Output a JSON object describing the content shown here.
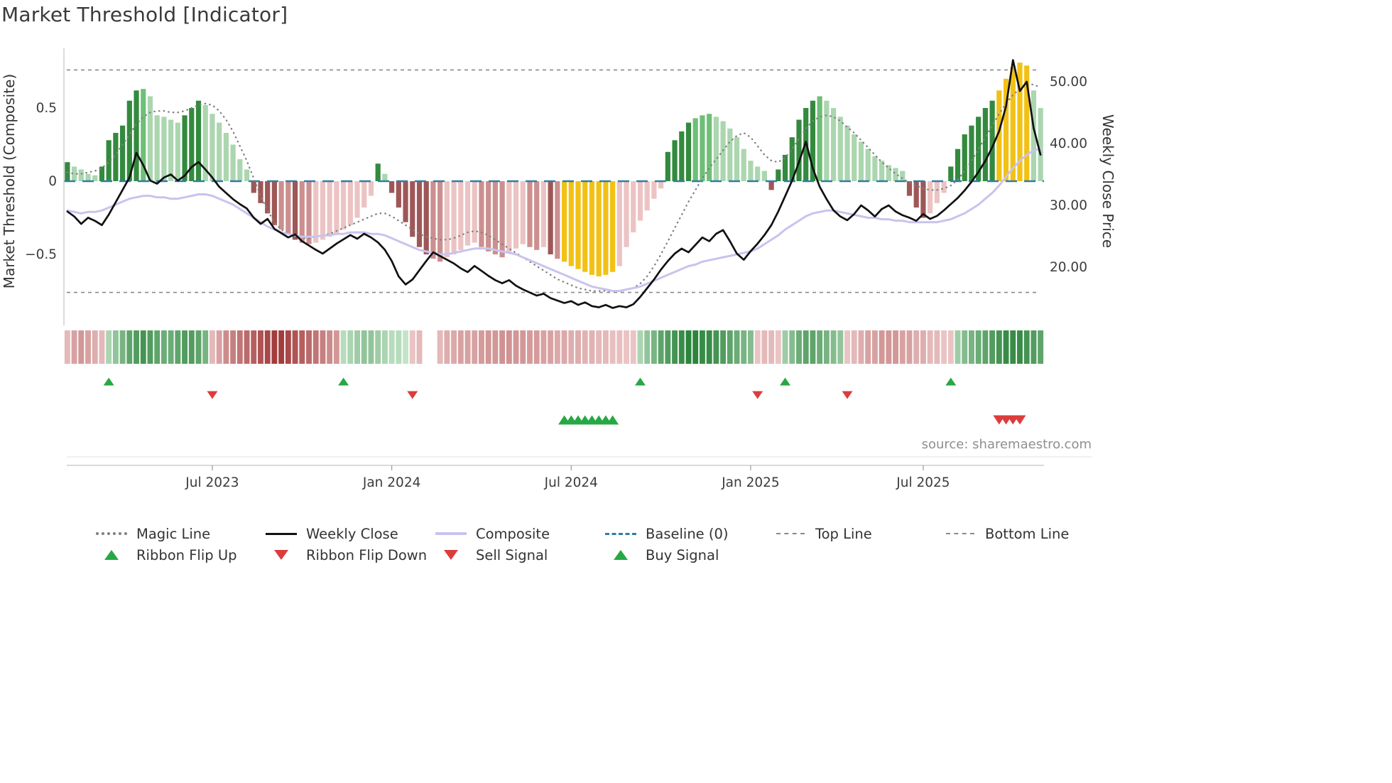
{
  "title": "Market Threshold [Indicator]",
  "source": "source: sharemaestro.com",
  "axes": {
    "left_label": "Market Threshold (Composite)",
    "right_label": "Weekly Close Price",
    "left_ticks": [
      {
        "label": "0.5",
        "value": 0.5
      },
      {
        "label": "0",
        "value": 0
      },
      {
        "label": "−0.5",
        "value": -0.5
      }
    ],
    "right_ticks": [
      {
        "label": "50.00",
        "value": 50
      },
      {
        "label": "40.00",
        "value": 40
      },
      {
        "label": "30.00",
        "value": 30
      },
      {
        "label": "20.00",
        "value": 20
      }
    ],
    "x_ticks": [
      {
        "label": "Jul 2023",
        "week": 21
      },
      {
        "label": "Jan 2024",
        "week": 47
      },
      {
        "label": "Jul 2024",
        "week": 73
      },
      {
        "label": "Jan 2025",
        "week": 99
      },
      {
        "label": "Jul 2025",
        "week": 124
      }
    ]
  },
  "chart_data": {
    "type": "bar",
    "note": "weekly combo chart: composite histogram bars + overlay lines; left axis composite, right axis price",
    "ylim_left": [
      -0.97,
      0.91
    ],
    "ylim_right_ticks": [
      20,
      30,
      40,
      50
    ],
    "top_line": 0.76,
    "bottom_line": -0.76,
    "baseline": 0,
    "bars": [
      0.13,
      0.1,
      0.08,
      0.05,
      0.04,
      0.1,
      0.28,
      0.33,
      0.38,
      0.55,
      0.62,
      0.63,
      0.58,
      0.45,
      0.44,
      0.42,
      0.4,
      0.45,
      0.5,
      0.55,
      0.52,
      0.46,
      0.4,
      0.33,
      0.25,
      0.15,
      0.08,
      -0.08,
      -0.15,
      -0.22,
      -0.3,
      -0.33,
      -0.36,
      -0.4,
      -0.42,
      -0.43,
      -0.42,
      -0.4,
      -0.38,
      -0.36,
      -0.33,
      -0.3,
      -0.25,
      -0.18,
      -0.1,
      0.12,
      0.05,
      -0.08,
      -0.18,
      -0.28,
      -0.38,
      -0.45,
      -0.5,
      -0.53,
      -0.55,
      -0.52,
      -0.5,
      -0.47,
      -0.44,
      -0.42,
      -0.45,
      -0.48,
      -0.5,
      -0.52,
      -0.49,
      -0.46,
      -0.43,
      -0.45,
      -0.47,
      -0.45,
      -0.5,
      -0.53,
      -0.55,
      -0.58,
      -0.6,
      -0.62,
      -0.64,
      -0.65,
      -0.64,
      -0.62,
      -0.58,
      -0.45,
      -0.35,
      -0.27,
      -0.2,
      -0.12,
      -0.05,
      0.2,
      0.28,
      0.34,
      0.4,
      0.43,
      0.45,
      0.46,
      0.44,
      0.41,
      0.36,
      0.3,
      0.22,
      0.14,
      0.1,
      0.07,
      -0.06,
      0.08,
      0.18,
      0.3,
      0.42,
      0.5,
      0.55,
      0.58,
      0.55,
      0.5,
      0.44,
      0.38,
      0.32,
      0.27,
      0.22,
      0.17,
      0.14,
      0.11,
      0.09,
      0.07,
      -0.1,
      -0.18,
      -0.25,
      -0.22,
      -0.15,
      -0.08,
      0.1,
      0.22,
      0.32,
      0.38,
      0.44,
      0.5,
      0.55,
      0.62,
      0.7,
      0.78,
      0.81,
      0.79,
      0.62,
      0.5
    ],
    "weekly_close": [
      29.0,
      28.2,
      27.0,
      28.0,
      27.5,
      26.8,
      28.5,
      30.5,
      32.5,
      34.5,
      38.5,
      36.5,
      34.0,
      33.5,
      34.5,
      35.0,
      34.0,
      34.8,
      36.2,
      37.0,
      35.8,
      34.5,
      33.0,
      32.0,
      31.0,
      30.2,
      29.5,
      28.0,
      27.0,
      27.8,
      26.2,
      25.5,
      24.8,
      25.3,
      24.2,
      23.5,
      22.8,
      22.2,
      23.0,
      23.8,
      24.5,
      25.2,
      24.6,
      25.4,
      24.8,
      24.0,
      22.8,
      21.0,
      18.5,
      17.2,
      18.0,
      19.5,
      21.0,
      22.4,
      21.8,
      21.2,
      20.6,
      19.8,
      19.2,
      20.2,
      19.4,
      18.6,
      17.9,
      17.4,
      17.9,
      17.0,
      16.4,
      15.9,
      15.4,
      15.7,
      15.0,
      14.6,
      14.2,
      14.5,
      13.9,
      14.3,
      13.7,
      13.5,
      13.9,
      13.4,
      13.7,
      13.5,
      14.0,
      15.2,
      16.6,
      18.0,
      19.6,
      21.0,
      22.2,
      23.0,
      22.4,
      23.6,
      24.8,
      24.2,
      25.4,
      26.0,
      24.2,
      22.2,
      21.2,
      22.6,
      23.8,
      25.2,
      26.8,
      29.0,
      31.5,
      34.0,
      37.0,
      40.3,
      36.0,
      33.0,
      31.0,
      29.2,
      28.2,
      27.6,
      28.6,
      30.0,
      29.2,
      28.2,
      29.4,
      30.0,
      29.0,
      28.4,
      28.0,
      27.5,
      28.6,
      27.8,
      28.3,
      29.2,
      30.2,
      31.2,
      32.4,
      33.8,
      35.4,
      37.2,
      39.4,
      42.0,
      46.0,
      53.5,
      48.5,
      50.0,
      42.5,
      38.2
    ],
    "magic_line": [
      0.06,
      0.05,
      0.05,
      0.06,
      0.07,
      0.09,
      0.13,
      0.18,
      0.25,
      0.32,
      0.39,
      0.44,
      0.47,
      0.48,
      0.48,
      0.47,
      0.47,
      0.48,
      0.5,
      0.52,
      0.53,
      0.52,
      0.48,
      0.42,
      0.34,
      0.24,
      0.14,
      0.02,
      -0.1,
      -0.2,
      -0.28,
      -0.33,
      -0.36,
      -0.38,
      -0.39,
      -0.39,
      -0.38,
      -0.37,
      -0.36,
      -0.34,
      -0.32,
      -0.3,
      -0.28,
      -0.26,
      -0.24,
      -0.22,
      -0.22,
      -0.24,
      -0.27,
      -0.3,
      -0.33,
      -0.36,
      -0.38,
      -0.39,
      -0.4,
      -0.4,
      -0.39,
      -0.37,
      -0.35,
      -0.34,
      -0.35,
      -0.37,
      -0.4,
      -0.43,
      -0.46,
      -0.49,
      -0.52,
      -0.55,
      -0.58,
      -0.61,
      -0.64,
      -0.67,
      -0.69,
      -0.71,
      -0.73,
      -0.74,
      -0.75,
      -0.75,
      -0.75,
      -0.75,
      -0.75,
      -0.74,
      -0.73,
      -0.7,
      -0.65,
      -0.58,
      -0.5,
      -0.41,
      -0.32,
      -0.23,
      -0.14,
      -0.06,
      0.02,
      0.09,
      0.15,
      0.21,
      0.27,
      0.31,
      0.33,
      0.3,
      0.24,
      0.18,
      0.14,
      0.13,
      0.16,
      0.22,
      0.29,
      0.36,
      0.41,
      0.44,
      0.45,
      0.44,
      0.41,
      0.37,
      0.33,
      0.28,
      0.23,
      0.18,
      0.13,
      0.09,
      0.05,
      0.02,
      -0.01,
      -0.03,
      -0.05,
      -0.06,
      -0.06,
      -0.05,
      -0.03,
      0.01,
      0.07,
      0.14,
      0.22,
      0.3,
      0.38,
      0.46,
      0.53,
      0.59,
      0.63,
      0.66,
      0.66,
      0.64
    ],
    "composite_line": [
      -0.2,
      -0.21,
      -0.22,
      -0.21,
      -0.21,
      -0.2,
      -0.18,
      -0.16,
      -0.14,
      -0.12,
      -0.11,
      -0.1,
      -0.1,
      -0.11,
      -0.11,
      -0.12,
      -0.12,
      -0.11,
      -0.1,
      -0.09,
      -0.09,
      -0.1,
      -0.12,
      -0.14,
      -0.16,
      -0.19,
      -0.22,
      -0.25,
      -0.28,
      -0.31,
      -0.33,
      -0.35,
      -0.36,
      -0.37,
      -0.38,
      -0.38,
      -0.38,
      -0.37,
      -0.37,
      -0.36,
      -0.36,
      -0.35,
      -0.35,
      -0.35,
      -0.36,
      -0.36,
      -0.37,
      -0.39,
      -0.41,
      -0.43,
      -0.45,
      -0.47,
      -0.48,
      -0.49,
      -0.5,
      -0.5,
      -0.49,
      -0.48,
      -0.47,
      -0.46,
      -0.46,
      -0.46,
      -0.47,
      -0.48,
      -0.49,
      -0.5,
      -0.52,
      -0.54,
      -0.56,
      -0.58,
      -0.6,
      -0.62,
      -0.64,
      -0.66,
      -0.68,
      -0.7,
      -0.72,
      -0.73,
      -0.74,
      -0.75,
      -0.75,
      -0.74,
      -0.73,
      -0.72,
      -0.7,
      -0.68,
      -0.66,
      -0.64,
      -0.62,
      -0.6,
      -0.58,
      -0.57,
      -0.55,
      -0.54,
      -0.53,
      -0.52,
      -0.51,
      -0.5,
      -0.49,
      -0.48,
      -0.46,
      -0.43,
      -0.4,
      -0.37,
      -0.33,
      -0.3,
      -0.27,
      -0.24,
      -0.22,
      -0.21,
      -0.2,
      -0.2,
      -0.21,
      -0.22,
      -0.23,
      -0.24,
      -0.25,
      -0.25,
      -0.26,
      -0.26,
      -0.27,
      -0.27,
      -0.28,
      -0.28,
      -0.28,
      -0.28,
      -0.28,
      -0.27,
      -0.26,
      -0.24,
      -0.22,
      -0.19,
      -0.16,
      -0.12,
      -0.08,
      -0.03,
      0.03,
      0.09,
      0.14,
      0.18,
      0.21,
      0.22
    ],
    "ribbon": [
      -0.35,
      -0.45,
      -0.5,
      -0.45,
      -0.4,
      -0.35,
      0.35,
      0.45,
      0.55,
      0.65,
      0.7,
      0.75,
      0.7,
      0.65,
      0.6,
      0.6,
      0.65,
      0.7,
      0.7,
      0.65,
      0.55,
      -0.35,
      -0.45,
      -0.55,
      -0.6,
      -0.65,
      -0.7,
      -0.75,
      -0.8,
      -0.85,
      -0.9,
      -0.9,
      -0.85,
      -0.8,
      -0.75,
      -0.7,
      -0.65,
      -0.6,
      -0.55,
      -0.5,
      0.3,
      0.35,
      0.4,
      0.45,
      0.45,
      0.4,
      0.35,
      0.3,
      0.3,
      0.25,
      -0.3,
      -0.35,
      null,
      null,
      -0.35,
      -0.4,
      -0.42,
      -0.45,
      -0.45,
      -0.45,
      -0.48,
      -0.5,
      -0.5,
      -0.52,
      -0.52,
      -0.5,
      -0.5,
      -0.48,
      -0.48,
      -0.45,
      -0.45,
      -0.42,
      -0.42,
      -0.4,
      -0.4,
      -0.38,
      -0.38,
      -0.35,
      -0.35,
      -0.32,
      -0.32,
      -0.3,
      -0.3,
      0.35,
      0.45,
      0.55,
      0.65,
      0.7,
      0.75,
      0.8,
      0.85,
      0.85,
      0.8,
      0.8,
      0.75,
      0.7,
      0.65,
      0.6,
      0.55,
      0.5,
      -0.3,
      -0.35,
      -0.35,
      -0.3,
      0.4,
      0.5,
      0.6,
      0.65,
      0.65,
      0.6,
      0.55,
      0.5,
      0.45,
      -0.3,
      -0.35,
      -0.4,
      -0.45,
      -0.45,
      -0.5,
      -0.5,
      -0.5,
      -0.45,
      -0.45,
      -0.4,
      -0.4,
      -0.35,
      -0.35,
      -0.3,
      -0.3,
      0.4,
      0.5,
      0.55,
      0.6,
      0.65,
      0.7,
      0.75,
      0.8,
      0.8,
      0.8,
      0.75,
      0.7,
      0.65
    ],
    "signals": {
      "ribbon_flip_up_weeks": [
        6,
        40,
        83,
        104,
        128
      ],
      "ribbon_flip_down_weeks": [
        21,
        50,
        100,
        113
      ],
      "buy_signal_weeks": [
        72,
        73,
        74,
        75,
        76,
        77,
        78,
        79
      ],
      "sell_signal_weeks": [
        135,
        136,
        137,
        138
      ],
      "highlight_bar_weeks": [
        72,
        73,
        74,
        75,
        76,
        77,
        78,
        79,
        135,
        136,
        137,
        138,
        139
      ]
    }
  },
  "colors": {
    "dark_green": "#338a3e",
    "mid_green": "#6fbf77",
    "light_green": "#abd6af",
    "dark_red": "#9e5757",
    "mid_red": "#cc8f8f",
    "light_red": "#ecc3c3",
    "highlight": "#f2c115",
    "weekly_close": "#111111",
    "composite_line": "#c9c3ee",
    "magic_line": "#808080",
    "baseline": "#2e7fa3",
    "guide": "#8a8a8a",
    "ribbon_green_lo": "#c4e4c8",
    "ribbon_green_hi": "#1f7c31",
    "ribbon_red_lo": "#f0cfcf",
    "ribbon_red_hi": "#a33d3d",
    "buy": "#27a844",
    "sell": "#dd3c3c"
  },
  "legend": {
    "row1": [
      {
        "label": "Magic Line",
        "swatch": "dotted-gray"
      },
      {
        "label": "Weekly Close",
        "swatch": "solid-black"
      },
      {
        "label": "Composite",
        "swatch": "solid-lavender"
      },
      {
        "label": "Baseline (0)",
        "swatch": "dashed-blue"
      },
      {
        "label": "Top Line",
        "swatch": "dashed-gray"
      },
      {
        "label": "Bottom Line",
        "swatch": "dashed-gray"
      }
    ],
    "row2": [
      {
        "label": "Ribbon Flip Up",
        "marker": "triangle-up-green"
      },
      {
        "label": "Ribbon Flip Down",
        "marker": "triangle-down-red"
      },
      {
        "label": "Sell Signal",
        "marker": "triangle-down-red"
      },
      {
        "label": "Buy Signal",
        "marker": "triangle-up-green"
      }
    ]
  }
}
